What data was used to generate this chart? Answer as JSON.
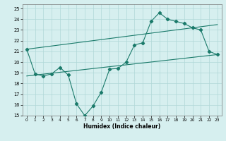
{
  "xlabel": "Humidex (Indice chaleur)",
  "bg_color": "#d6efef",
  "grid_color": "#b0d8d8",
  "line_color": "#1a7a6a",
  "xlim": [
    -0.5,
    23.5
  ],
  "ylim": [
    15,
    25.4
  ],
  "xticks": [
    0,
    1,
    2,
    3,
    4,
    5,
    6,
    7,
    8,
    9,
    10,
    11,
    12,
    13,
    14,
    15,
    16,
    17,
    18,
    19,
    20,
    21,
    22,
    23
  ],
  "yticks": [
    15,
    16,
    17,
    18,
    19,
    20,
    21,
    22,
    23,
    24,
    25
  ],
  "line1_x": [
    0,
    1,
    2,
    3,
    4,
    5,
    6,
    7,
    8,
    9,
    10,
    11,
    12,
    13,
    14,
    15,
    16,
    17,
    18,
    19,
    20,
    21,
    22,
    23
  ],
  "line1_y": [
    21.2,
    18.9,
    18.7,
    18.9,
    19.5,
    18.8,
    16.1,
    15.0,
    15.9,
    17.2,
    19.35,
    19.4,
    20.0,
    21.6,
    21.8,
    23.8,
    24.6,
    24.0,
    23.8,
    23.6,
    23.2,
    23.0,
    21.0,
    20.7
  ],
  "line2_x": [
    0,
    23
  ],
  "line2_y": [
    18.7,
    20.7
  ],
  "line3_x": [
    0,
    23
  ],
  "line3_y": [
    21.2,
    23.5
  ],
  "marker": "D",
  "markersize": 2.2,
  "linewidth": 0.8
}
